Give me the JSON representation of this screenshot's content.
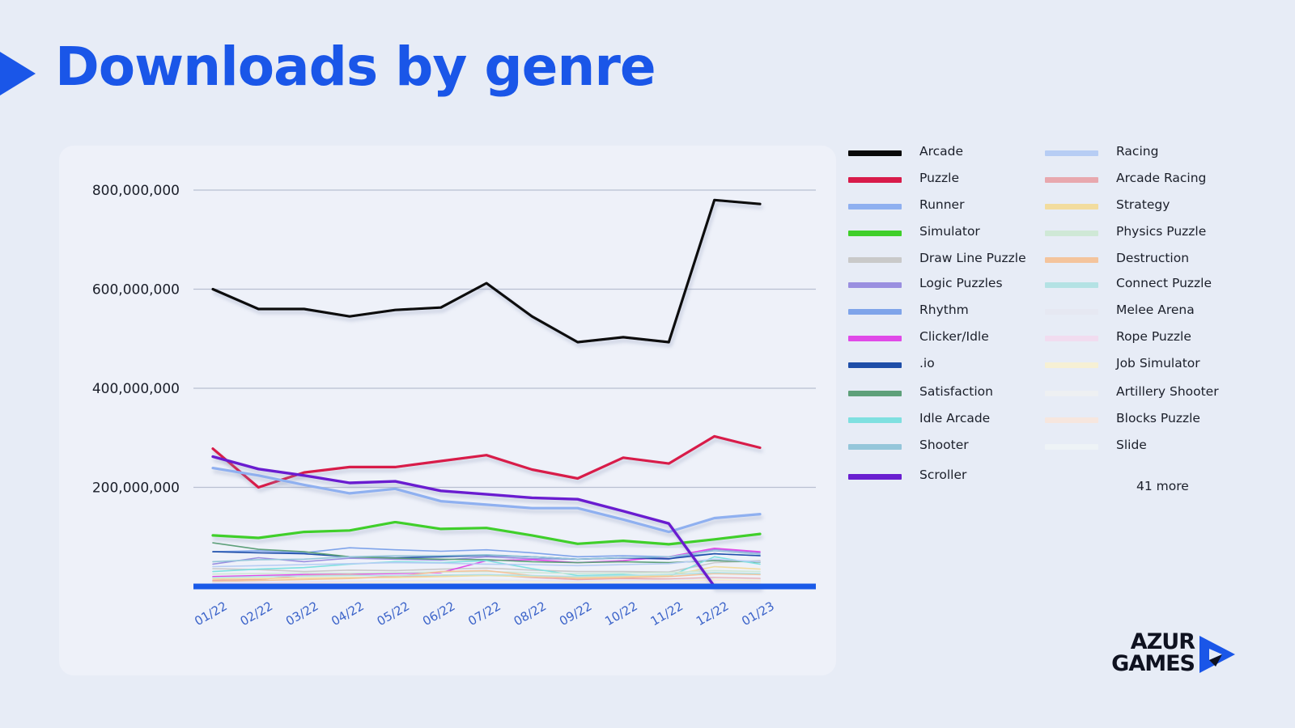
{
  "page": {
    "title": "Downloads by genre"
  },
  "legend": {
    "items": [
      {
        "label": "Arcade",
        "color": "#0a0a0a"
      },
      {
        "label": "Puzzle",
        "color": "#d81b4a"
      },
      {
        "label": "Runner",
        "color": "#8fb0f0"
      },
      {
        "label": "Simulator",
        "color": "#3fcf2a"
      },
      {
        "label": "Draw Line Puzzle",
        "color": "#c9c9c9"
      },
      {
        "label": "Logic Puzzles",
        "color": "#9a8fe0"
      },
      {
        "label": "Rhythm",
        "color": "#7fa4ea"
      },
      {
        "label": "Clicker/Idle",
        "color": "#e04ae8"
      },
      {
        "label": ".io",
        "color": "#1e4ea8"
      },
      {
        "label": "Satisfaction",
        "color": "#5ea07a"
      },
      {
        "label": "Idle Arcade",
        "color": "#7fe0e0"
      },
      {
        "label": "Shooter",
        "color": "#95c6da"
      },
      {
        "label": "Scroller",
        "color": "#6a1fd0"
      },
      {
        "label": "Racing",
        "color": "#b7cdf4"
      },
      {
        "label": "Arcade Racing",
        "color": "#e8a8ae"
      },
      {
        "label": "Strategy",
        "color": "#f2dc9e"
      },
      {
        "label": "Physics Puzzle",
        "color": "#cfe8d6"
      },
      {
        "label": "Destruction",
        "color": "#f4c49c"
      },
      {
        "label": "Connect Puzzle",
        "color": "#b4e2e4"
      },
      {
        "label": "Melee Arena",
        "color": "#e6e8f2"
      },
      {
        "label": "Rope Puzzle",
        "color": "#f1dcef"
      },
      {
        "label": "Job Simulator",
        "color": "#f6f0d4"
      },
      {
        "label": "Artillery Shooter",
        "color": "#eef0f2"
      },
      {
        "label": "Blocks Puzzle",
        "color": "#f6e6de"
      },
      {
        "label": "Slide",
        "color": "#eef3f6"
      }
    ],
    "more": "41 more"
  },
  "chart_data": {
    "type": "line",
    "title": "Downloads by genre",
    "xlabel": "",
    "ylabel": "",
    "categories": [
      "01/22",
      "02/22",
      "03/22",
      "04/22",
      "05/22",
      "06/22",
      "07/22",
      "08/22",
      "09/22",
      "10/22",
      "11/22",
      "12/22",
      "01/23"
    ],
    "ylim": [
      0,
      800000000
    ],
    "yticks": [
      200000000,
      400000000,
      600000000,
      800000000
    ],
    "ytick_labels": [
      "200,000,000",
      "400,000,000",
      "600,000,000",
      "800,000,000"
    ],
    "grid": true,
    "legend_position": "right",
    "series": [
      {
        "name": "Arcade",
        "color": "#0a0a0a",
        "width": 3.2,
        "values": [
          600000000,
          560000000,
          560000000,
          545000000,
          558000000,
          563000000,
          612000000,
          545000000,
          493000000,
          503000000,
          493000000,
          780000000,
          772000000
        ]
      },
      {
        "name": "Puzzle",
        "color": "#d81b4a",
        "width": 3.2,
        "values": [
          278000000,
          200000000,
          230000000,
          241000000,
          241000000,
          253000000,
          265000000,
          236000000,
          218000000,
          260000000,
          248000000,
          303000000,
          280000000
        ]
      },
      {
        "name": "Runner",
        "color": "#8fb0f0",
        "width": 3.2,
        "values": [
          239000000,
          224000000,
          205000000,
          188000000,
          197000000,
          172000000,
          165000000,
          158000000,
          158000000,
          135000000,
          110000000,
          138000000,
          146000000
        ]
      },
      {
        "name": "Simulator",
        "color": "#3fcf2a",
        "width": 3.2,
        "values": [
          103000000,
          98000000,
          110000000,
          113000000,
          130000000,
          116000000,
          118000000,
          103000000,
          86000000,
          92000000,
          85000000,
          95000000,
          106000000
        ]
      },
      {
        "name": "Draw Line Puzzle",
        "color": "#c9c9c9",
        "width": 1.6,
        "values": [
          36000000,
          34000000,
          30000000,
          33000000,
          32000000,
          35000000,
          37000000,
          33000000,
          30000000,
          30000000,
          29000000,
          48000000,
          52000000
        ]
      },
      {
        "name": "Logic Puzzles",
        "color": "#9a8fe0",
        "width": 1.6,
        "values": [
          45000000,
          58000000,
          50000000,
          57000000,
          55000000,
          53000000,
          60000000,
          56000000,
          55000000,
          57000000,
          55000000,
          75000000,
          68000000
        ]
      },
      {
        "name": "Rhythm",
        "color": "#7fa4ea",
        "width": 1.6,
        "values": [
          70000000,
          72000000,
          68000000,
          78000000,
          74000000,
          71000000,
          74000000,
          68000000,
          60000000,
          62000000,
          60000000,
          66000000,
          62000000
        ]
      },
      {
        "name": "Clicker/Idle",
        "color": "#e04ae8",
        "width": 1.6,
        "values": [
          20000000,
          22000000,
          24000000,
          25000000,
          26000000,
          28000000,
          52000000,
          54000000,
          48000000,
          52000000,
          60000000,
          77000000,
          70000000
        ]
      },
      {
        "name": ".io",
        "color": "#1e4ea8",
        "width": 1.6,
        "values": [
          70000000,
          68000000,
          66000000,
          60000000,
          58000000,
          60000000,
          63000000,
          60000000,
          55000000,
          58000000,
          56000000,
          66000000,
          62000000
        ]
      },
      {
        "name": "Satisfaction",
        "color": "#5ea07a",
        "width": 1.6,
        "values": [
          88000000,
          75000000,
          70000000,
          60000000,
          57000000,
          55000000,
          54000000,
          50000000,
          48000000,
          50000000,
          48000000,
          52000000,
          49000000
        ]
      },
      {
        "name": "Idle Arcade",
        "color": "#7fe0e0",
        "width": 1.6,
        "values": [
          30000000,
          35000000,
          38000000,
          45000000,
          50000000,
          48000000,
          52000000,
          36000000,
          22000000,
          24000000,
          20000000,
          60000000,
          45000000
        ]
      },
      {
        "name": "Shooter",
        "color": "#95c6da",
        "width": 1.6,
        "values": [
          50000000,
          54000000,
          55000000,
          60000000,
          62000000,
          62000000,
          64000000,
          60000000,
          55000000,
          58000000,
          60000000,
          72000000,
          65000000
        ]
      },
      {
        "name": "Scroller",
        "color": "#6a1fd0",
        "width": 3.4,
        "values": [
          262000000,
          237000000,
          224000000,
          209000000,
          212000000,
          193000000,
          186000000,
          179000000,
          176000000,
          152000000,
          127000000,
          0,
          0
        ]
      },
      {
        "name": "Racing",
        "color": "#b7cdf4",
        "width": 1.6,
        "values": [
          40000000,
          42000000,
          44000000,
          46000000,
          48000000,
          47000000,
          45000000,
          44000000,
          42000000,
          44000000,
          46000000,
          55000000,
          50000000
        ]
      },
      {
        "name": "Arcade Racing",
        "color": "#e8a8ae",
        "width": 1.6,
        "values": [
          12000000,
          14000000,
          22000000,
          24000000,
          20000000,
          22000000,
          24000000,
          18000000,
          14000000,
          16000000,
          15000000,
          18000000,
          16000000
        ]
      },
      {
        "name": "Strategy",
        "color": "#f2dc9e",
        "width": 1.6,
        "values": [
          15000000,
          16000000,
          17000000,
          18000000,
          18000000,
          20000000,
          22000000,
          20000000,
          18000000,
          20000000,
          22000000,
          40000000,
          35000000
        ]
      },
      {
        "name": "Physics Puzzle",
        "color": "#cfe8d6",
        "width": 1.6,
        "values": [
          25000000,
          26000000,
          27000000,
          27000000,
          28000000,
          29000000,
          30000000,
          28000000,
          26000000,
          27000000,
          28000000,
          32000000,
          30000000
        ]
      },
      {
        "name": "Destruction",
        "color": "#f4c49c",
        "width": 1.6,
        "values": [
          10000000,
          12000000,
          14000000,
          16000000,
          20000000,
          30000000,
          32000000,
          22000000,
          16000000,
          18000000,
          20000000,
          26000000,
          24000000
        ]
      },
      {
        "name": "Connect Puzzle",
        "color": "#b4e2e4",
        "width": 1.6,
        "values": [
          18000000,
          20000000,
          21000000,
          22000000,
          22000000,
          23000000,
          24000000,
          22000000,
          20000000,
          22000000,
          24000000,
          28000000,
          26000000
        ]
      },
      {
        "name": "Melee Arena",
        "color": "#e6e8f2",
        "width": 1.6,
        "values": [
          8000000,
          9000000,
          10000000,
          11000000,
          12000000,
          12000000,
          13000000,
          12000000,
          11000000,
          12000000,
          13000000,
          16000000,
          14000000
        ]
      },
      {
        "name": "Rope Puzzle",
        "color": "#f1dcef",
        "width": 1.6,
        "values": [
          6000000,
          7000000,
          8000000,
          8000000,
          9000000,
          9000000,
          10000000,
          9000000,
          8000000,
          9000000,
          10000000,
          12000000,
          11000000
        ]
      },
      {
        "name": "Job Simulator",
        "color": "#f6f0d4",
        "width": 1.6,
        "values": [
          4000000,
          5000000,
          6000000,
          7000000,
          8000000,
          9000000,
          10000000,
          9000000,
          8000000,
          9000000,
          10000000,
          14000000,
          12000000
        ]
      },
      {
        "name": "Artillery Shooter",
        "color": "#eef0f2",
        "width": 1.6,
        "values": [
          3000000,
          4000000,
          5000000,
          5000000,
          6000000,
          6000000,
          7000000,
          6000000,
          5000000,
          6000000,
          7000000,
          9000000,
          8000000
        ]
      },
      {
        "name": "Blocks Puzzle",
        "color": "#f6e6de",
        "width": 1.6,
        "values": [
          2000000,
          3000000,
          3000000,
          4000000,
          4000000,
          5000000,
          5000000,
          4000000,
          4000000,
          5000000,
          5000000,
          7000000,
          6000000
        ]
      },
      {
        "name": "Slide",
        "color": "#eef3f6",
        "width": 1.6,
        "values": [
          1000000,
          2000000,
          2000000,
          3000000,
          3000000,
          3000000,
          4000000,
          3000000,
          3000000,
          3000000,
          4000000,
          5000000,
          4000000
        ]
      }
    ]
  },
  "logo": {
    "line1": "AZUR",
    "line2": "GAMES"
  }
}
